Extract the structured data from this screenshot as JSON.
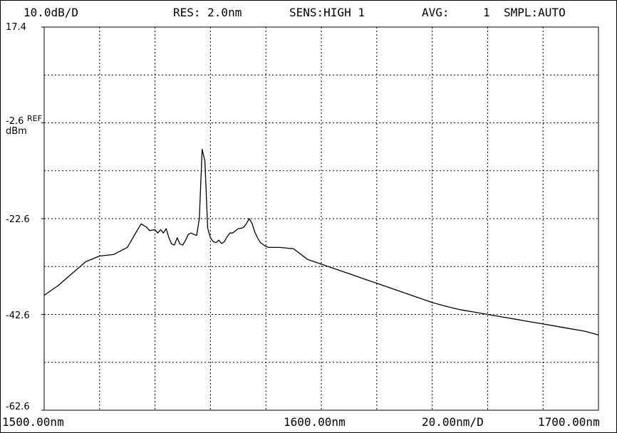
{
  "header": {
    "scale": "10.0dB/D",
    "res": "RES: 2.0nm",
    "sens": "SENS:HIGH 1",
    "avg_label": "AVG:",
    "avg_value": "1",
    "smpl": "SMPL:AUTO"
  },
  "chart_data": {
    "type": "line",
    "ylim": [
      -62.6,
      17.4
    ],
    "xlim": [
      1500,
      1700
    ],
    "grid": true,
    "y_tick_labels": [
      "17.4",
      "-2.6",
      "-22.6",
      "-42.6",
      "-62.6"
    ],
    "y_tick_values": [
      17.4,
      -2.6,
      -22.6,
      -42.6,
      -62.6
    ],
    "ref_label": "REF",
    "ylabel": "dBm",
    "x_labels": {
      "start": "1500.00nm",
      "center": "1600.00nm",
      "span": "20.00nm/D",
      "stop": "1700.00nm"
    },
    "series": [
      {
        "x": [
          1500,
          1505,
          1510,
          1515,
          1520,
          1525,
          1530,
          1533,
          1535,
          1537,
          1538,
          1540,
          1541,
          1542,
          1543,
          1544,
          1545,
          1546,
          1547,
          1548,
          1549,
          1550,
          1551,
          1552,
          1553,
          1554,
          1555,
          1556,
          1557,
          1558,
          1559,
          1560,
          1561,
          1562,
          1563,
          1564,
          1565,
          1566,
          1567,
          1568,
          1570,
          1571,
          1572,
          1573,
          1574,
          1575,
          1576,
          1577,
          1578,
          1580,
          1581,
          1582,
          1585,
          1590,
          1595,
          1600,
          1605,
          1610,
          1615,
          1620,
          1625,
          1630,
          1635,
          1640,
          1645,
          1650,
          1655,
          1660,
          1665,
          1670,
          1675,
          1680,
          1685,
          1690,
          1695,
          1700
        ],
        "y": [
          -38.6,
          -36.6,
          -34.1,
          -31.6,
          -30.4,
          -30.1,
          -28.6,
          -25.6,
          -23.7,
          -24.4,
          -25.1,
          -24.9,
          -25.6,
          -24.9,
          -25.6,
          -24.7,
          -26.6,
          -27.9,
          -28.1,
          -26.6,
          -27.9,
          -28.1,
          -27.1,
          -25.9,
          -25.6,
          -25.9,
          -26.1,
          -22.6,
          -8.1,
          -10.6,
          -24.6,
          -26.6,
          -27.4,
          -27.6,
          -27.1,
          -27.8,
          -27.4,
          -26.4,
          -25.6,
          -25.6,
          -24.7,
          -24.6,
          -24.4,
          -23.6,
          -22.6,
          -23.6,
          -25.4,
          -26.6,
          -27.6,
          -28.4,
          -28.6,
          -28.6,
          -28.6,
          -28.9,
          -31.1,
          -32.1,
          -33.1,
          -34.1,
          -35.1,
          -36.1,
          -37.1,
          -38.1,
          -39.1,
          -40.1,
          -40.9,
          -41.6,
          -42.1,
          -42.6,
          -43.1,
          -43.6,
          -44.1,
          -44.6,
          -45.1,
          -45.6,
          -46.1,
          -46.9
        ]
      }
    ]
  }
}
